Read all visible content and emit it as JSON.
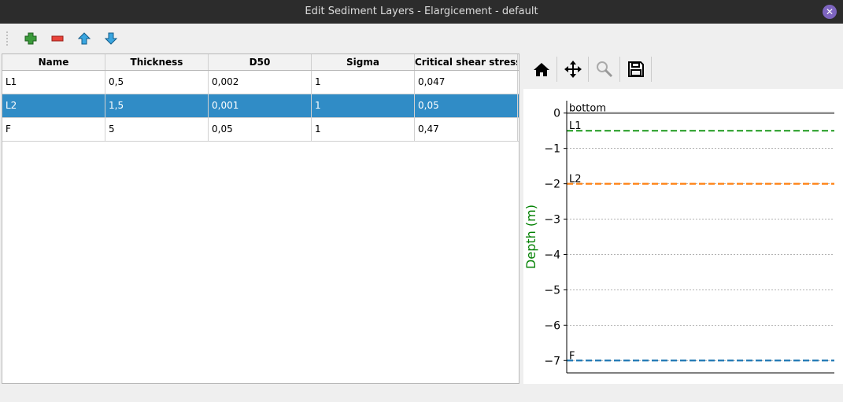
{
  "window": {
    "title": "Edit Sediment Layers - Elargicement - default",
    "close_icon": "close-icon"
  },
  "toolbar": {
    "icons": [
      "add-icon",
      "remove-icon",
      "move-up-icon",
      "move-down-icon"
    ]
  },
  "table": {
    "columns": [
      "Name",
      "Thickness",
      "D50",
      "Sigma",
      "Critical shear stress"
    ],
    "rows": [
      [
        "L1",
        "0,5",
        "0,002",
        "1",
        "0,047"
      ],
      [
        "L2",
        "1,5",
        "0,001",
        "1",
        "0,05"
      ],
      [
        "F",
        "5",
        "0,05",
        "1",
        "0,47"
      ]
    ],
    "selected_row": 1,
    "selection_color": "#308cc6"
  },
  "plot_toolbar": {
    "icons": [
      "home-icon",
      "pan-icon",
      "zoom-icon",
      "save-icon"
    ]
  },
  "chart_data": {
    "type": "line",
    "ylabel": "Depth (m)",
    "ylabel_color": "#008000",
    "ylim": [
      -7.35,
      0.35
    ],
    "yticks": [
      0,
      -1,
      -2,
      -3,
      -4,
      -5,
      -6,
      -7
    ],
    "ytick_labels": [
      "0",
      "−1",
      "−2",
      "−3",
      "−4",
      "−5",
      "−6",
      "−7"
    ],
    "grid": "horizontal dotted",
    "lines": [
      {
        "label": "bottom",
        "depth": 0,
        "color": "#808080",
        "style": "solid"
      },
      {
        "label": "L1",
        "depth": -0.5,
        "color": "#2ca02c",
        "style": "dashed"
      },
      {
        "label": "L2",
        "depth": -2,
        "color": "#ff7f0e",
        "style": "dashed"
      },
      {
        "label": "F",
        "depth": -7,
        "color": "#1f77b4",
        "style": "dashed"
      }
    ]
  }
}
